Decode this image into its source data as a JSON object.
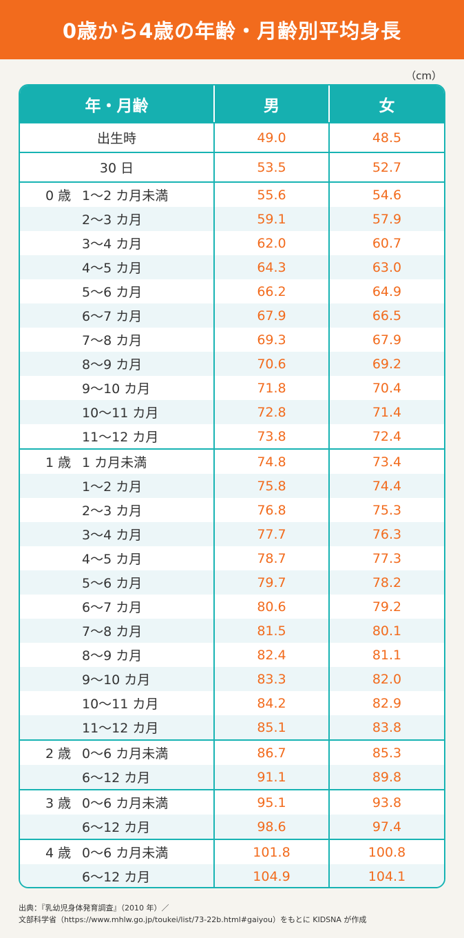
{
  "title": "0歳から4歳の年齢・月齢別平均身長",
  "unit": "（cm）",
  "headers": {
    "age": "年・月齢",
    "male": "男",
    "female": "女"
  },
  "chart_data": {
    "type": "table",
    "columns": [
      "年・月齢",
      "男",
      "女"
    ],
    "rows": [
      {
        "age": "",
        "label": "出生時",
        "male": "49.0",
        "female": "48.5",
        "top": true,
        "center": true,
        "tall": true,
        "shade": false
      },
      {
        "age": "",
        "label": "30 日",
        "male": "53.5",
        "female": "52.7",
        "top": true,
        "center": true,
        "tall": true,
        "shade": false
      },
      {
        "age": "0 歳",
        "label": "1～2 カ月未満",
        "male": "55.6",
        "female": "54.6",
        "top": true,
        "shade": false
      },
      {
        "age": "",
        "label": "2～3 カ月",
        "male": "59.1",
        "female": "57.9",
        "shade": true
      },
      {
        "age": "",
        "label": "3～4 カ月",
        "male": "62.0",
        "female": "60.7",
        "shade": false
      },
      {
        "age": "",
        "label": "4～5 カ月",
        "male": "64.3",
        "female": "63.0",
        "shade": true
      },
      {
        "age": "",
        "label": "5～6 カ月",
        "male": "66.2",
        "female": "64.9",
        "shade": false
      },
      {
        "age": "",
        "label": "6～7 カ月",
        "male": "67.9",
        "female": "66.5",
        "shade": true
      },
      {
        "age": "",
        "label": "7～8 カ月",
        "male": "69.3",
        "female": "67.9",
        "shade": false
      },
      {
        "age": "",
        "label": "8～9 カ月",
        "male": "70.6",
        "female": "69.2",
        "shade": true
      },
      {
        "age": "",
        "label": "9～10 カ月",
        "male": "71.8",
        "female": "70.4",
        "shade": false
      },
      {
        "age": "",
        "label": "10～11 カ月",
        "male": "72.8",
        "female": "71.4",
        "shade": true
      },
      {
        "age": "",
        "label": "11～12 カ月",
        "male": "73.8",
        "female": "72.4",
        "shade": false
      },
      {
        "age": "1 歳",
        "label": "1 カ月未満",
        "male": "74.8",
        "female": "73.4",
        "top": true,
        "shade": false
      },
      {
        "age": "",
        "label": "1～2 カ月",
        "male": "75.8",
        "female": "74.4",
        "shade": true
      },
      {
        "age": "",
        "label": "2～3 カ月",
        "male": "76.8",
        "female": "75.3",
        "shade": false
      },
      {
        "age": "",
        "label": "3～4 カ月",
        "male": "77.7",
        "female": "76.3",
        "shade": true
      },
      {
        "age": "",
        "label": "4～5 カ月",
        "male": "78.7",
        "female": "77.3",
        "shade": false
      },
      {
        "age": "",
        "label": "5～6 カ月",
        "male": "79.7",
        "female": "78.2",
        "shade": true
      },
      {
        "age": "",
        "label": "6～7 カ月",
        "male": "80.6",
        "female": "79.2",
        "shade": false
      },
      {
        "age": "",
        "label": "7～8 カ月",
        "male": "81.5",
        "female": "80.1",
        "shade": true
      },
      {
        "age": "",
        "label": "8～9 カ月",
        "male": "82.4",
        "female": "81.1",
        "shade": false
      },
      {
        "age": "",
        "label": "9～10 カ月",
        "male": "83.3",
        "female": "82.0",
        "shade": true
      },
      {
        "age": "",
        "label": "10～11 カ月",
        "male": "84.2",
        "female": "82.9",
        "shade": false
      },
      {
        "age": "",
        "label": "11～12 カ月",
        "male": "85.1",
        "female": "83.8",
        "shade": true
      },
      {
        "age": "2 歳",
        "label": "0～6 カ月未満",
        "male": "86.7",
        "female": "85.3",
        "top": true,
        "shade": false
      },
      {
        "age": "",
        "label": "6～12 カ月",
        "male": "91.1",
        "female": "89.8",
        "shade": true
      },
      {
        "age": "3 歳",
        "label": "0～6 カ月未満",
        "male": "95.1",
        "female": "93.8",
        "top": true,
        "shade": false
      },
      {
        "age": "",
        "label": "6～12 カ月",
        "male": "98.6",
        "female": "97.4",
        "shade": true
      },
      {
        "age": "4 歳",
        "label": "0～6 カ月未満",
        "male": "101.8",
        "female": "100.8",
        "top": true,
        "shade": false
      },
      {
        "age": "",
        "label": "6～12 カ月",
        "male": "104.9",
        "female": "104.1",
        "shade": true
      }
    ]
  },
  "source": {
    "line1": "出典：『乳幼児身体発育調査』（2010 年）／",
    "line2": "文部科学省（https://www.mhlw.go.jp/toukei/list/73-22b.html#gaiyou）をもとに KIDSNA が作成"
  },
  "colors": {
    "header": "#f26b1d",
    "teal": "#16b0b0",
    "value": "#f26b1d",
    "shade": "#ecf6f8"
  }
}
